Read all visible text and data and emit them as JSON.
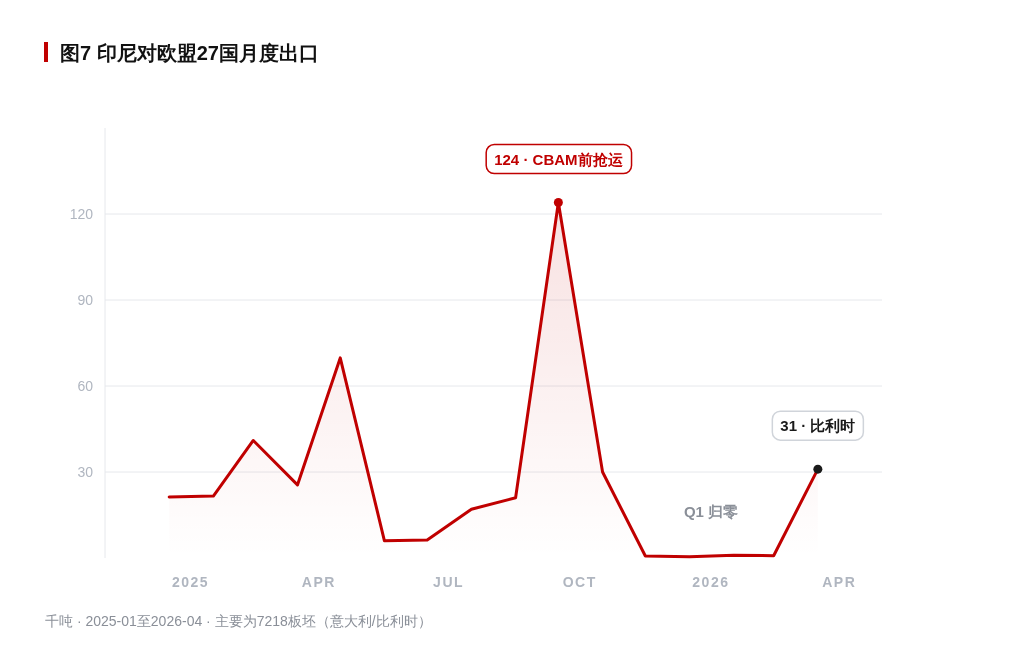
{
  "chart_data": {
    "type": "area",
    "title": "图7 印尼对欧盟27国月度出口",
    "x": [
      "2025-01",
      "2025-02",
      "2025-03",
      "2025-04",
      "2025-05",
      "2025-06",
      "2025-07",
      "2025-08",
      "2025-09",
      "2025-10",
      "2025-11",
      "2025-12",
      "2026-01",
      "2026-02",
      "2026-03",
      "2026-04"
    ],
    "series": [
      {
        "color": "#c00000",
        "values": [
          21.3,
          21.6,
          41,
          25.5,
          69.8,
          6,
          6.3,
          17,
          21,
          124,
          30,
          0.7,
          0.4,
          1,
          0.8,
          31
        ]
      }
    ],
    "xlim": [
      "2024-11-17",
      "2026-05-16"
    ],
    "xticks": [
      {
        "value": "2025-01-16",
        "label": "2025"
      },
      {
        "value": "2025-04-16",
        "label": "APR"
      },
      {
        "value": "2025-07-16",
        "label": "JUL"
      },
      {
        "value": "2025-10-16",
        "label": "OCT"
      },
      {
        "value": "2026-01-16",
        "label": "2026"
      },
      {
        "value": "2026-04-16",
        "label": "APR"
      }
    ],
    "ylim": [
      0,
      150
    ],
    "yticks": [
      30,
      60,
      90,
      120
    ],
    "grid": "y",
    "marker": "none",
    "line_style": "solid",
    "annotations": [
      {
        "text": "124 · CBAM前抢运",
        "x": "2025-10",
        "y": 124
      },
      {
        "text": "31 · 比利时",
        "x": "2026-04",
        "y": 31
      },
      "Q1 归零",
      "千吨 · 2025-01至2026-04 · 主要为7218板坯（意大利/比利时）"
    ]
  }
}
